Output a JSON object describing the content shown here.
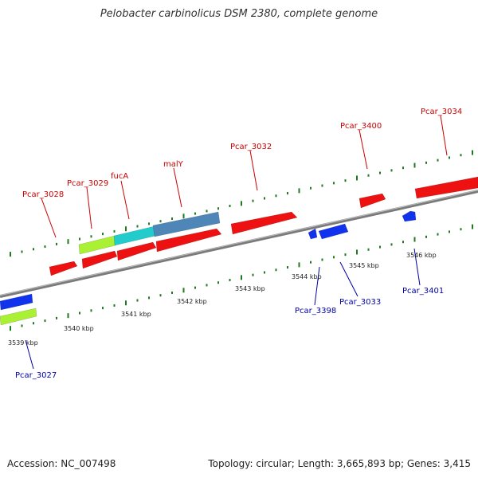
{
  "header": {
    "title": "Pelobacter carbinolicus DSM 2380, complete genome"
  },
  "footer": {
    "accession": "Accession: NC_007498",
    "topology": "Topology: circular; Length: 3,665,893 bp; Genes: 3,415"
  },
  "colors": {
    "backbone": "#7a7a7a",
    "tick": "#1f7a1f",
    "forward_label": "#cc0000",
    "reverse_label": "#0000aa",
    "gene_red": "#ee1111",
    "gene_blue": "#1133ee",
    "gene_lime": "#aaf033",
    "gene_cyan": "#22cccc",
    "gene_steel": "#4f86b8"
  },
  "scale": {
    "tick_labels": [
      "3539 kbp",
      "3540 kbp",
      "3541 kbp",
      "3542 kbp",
      "3543 kbp",
      "3544 kbp",
      "3545 kbp",
      "3546 kbp"
    ]
  },
  "labels": {
    "forward": [
      "Pcar_3028",
      "Pcar_3029",
      "fucA",
      "malY",
      "Pcar_3032",
      "Pcar_3400",
      "Pcar_3034"
    ],
    "reverse": [
      "Pcar_3027",
      "Pcar_3398",
      "Pcar_3033",
      "Pcar_3401"
    ]
  }
}
